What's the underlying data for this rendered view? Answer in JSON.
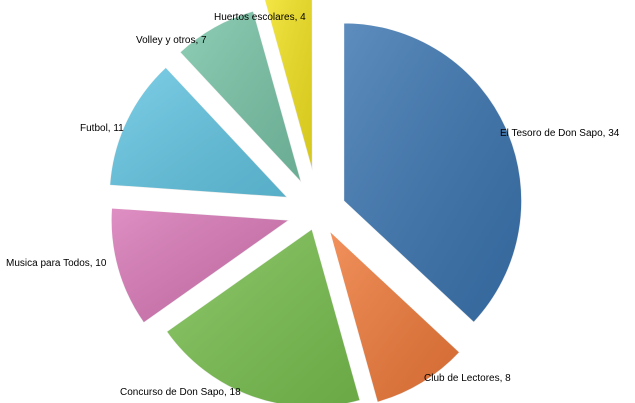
{
  "chart_data": {
    "type": "pie",
    "title": "",
    "legend": "none",
    "start_angle_deg": 0,
    "direction": "clockwise",
    "slices": [
      {
        "label": "El Tesoro de Don Sapo",
        "value": 34,
        "display": "El Tesoro de Don Sapo, 34",
        "color": "#3A74B0"
      },
      {
        "label": "Club de Lectores",
        "value": 8,
        "display": "Club de Lectores, 8",
        "color": "#F07A3A"
      },
      {
        "label": "Concurso de Don Sapo",
        "value": 18,
        "display": "Concurso de Don Sapo, 18",
        "color": "#79C04F"
      },
      {
        "label": "Musica para Todos",
        "value": 10,
        "display": "Musica para Todos, 10",
        "color": "#D877B6"
      },
      {
        "label": "Futbol",
        "value": 11,
        "display": "Futbol, 11",
        "color": "#63C6E3"
      },
      {
        "label": "Volley y otros",
        "value": 7,
        "display": "Volley y otros, 7",
        "color": "#79C5A8"
      },
      {
        "label": "Huertos escolares",
        "value": 4,
        "display": "Huertos escolares, 4",
        "color": "#F3E31F"
      }
    ]
  }
}
